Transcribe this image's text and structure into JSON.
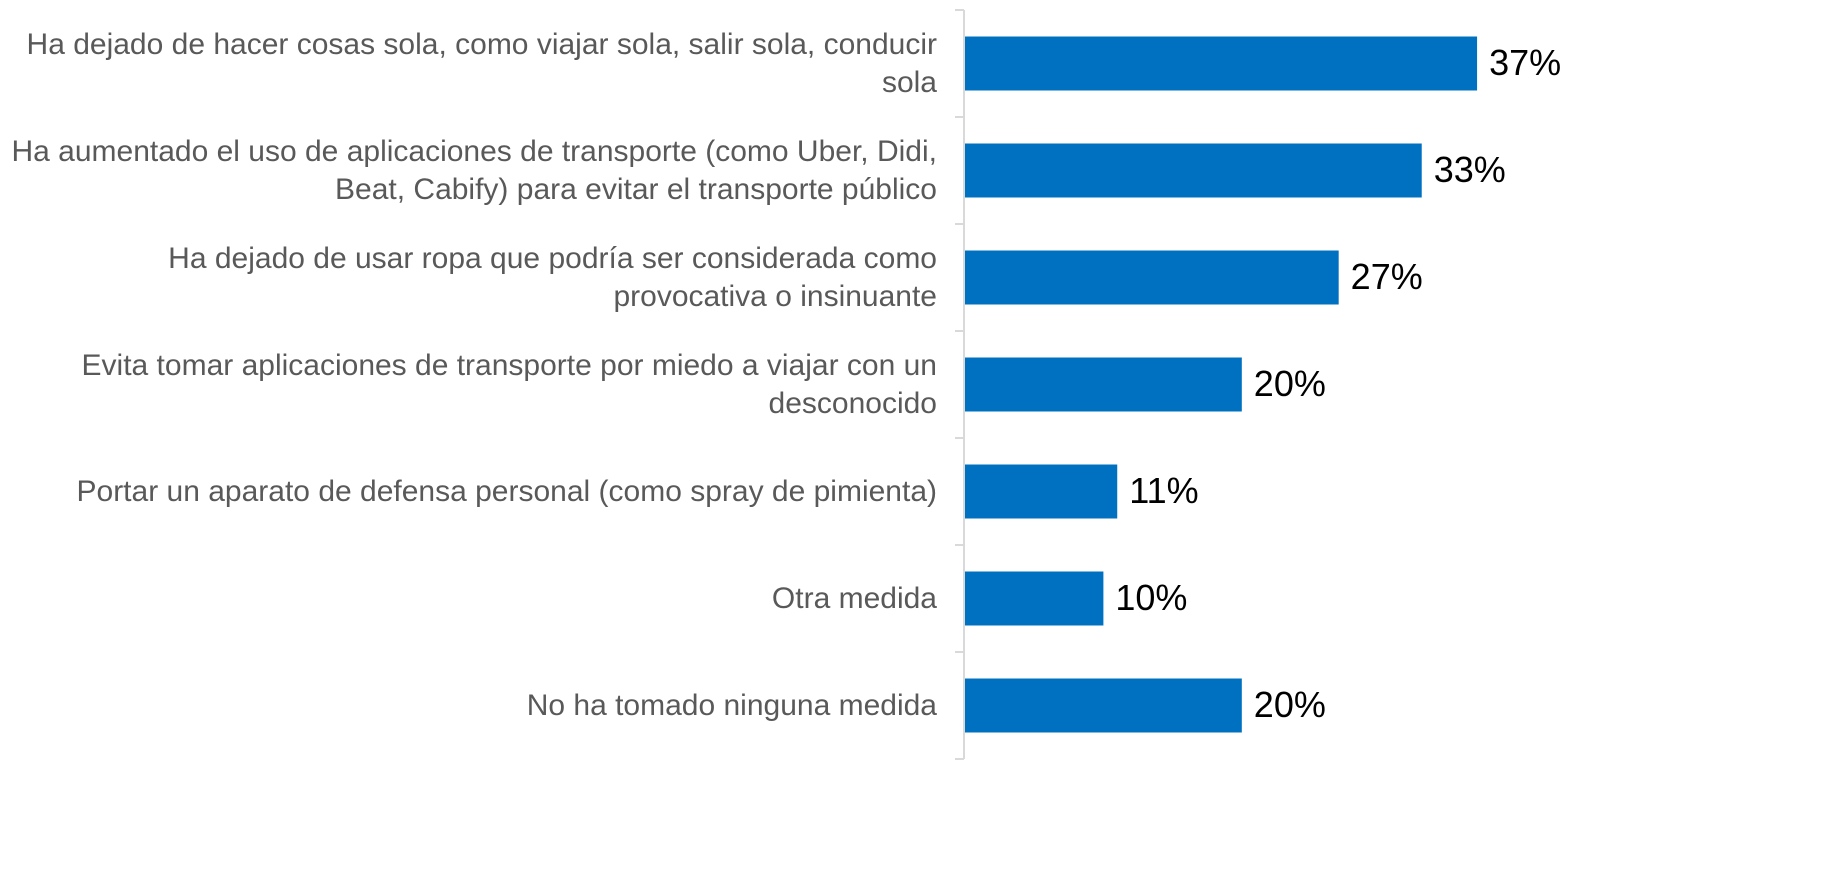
{
  "chart_data": {
    "type": "bar",
    "orientation": "horizontal",
    "categories": [
      "Ha dejado de hacer cosas sola, como viajar sola, salir sola, conducir sola",
      "Ha aumentado el uso de aplicaciones de transporte (como Uber, Didi, Beat, Cabify) para evitar el transporte público",
      "Ha dejado de usar ropa que podría ser considerada como provocativa o insinuante",
      "Evita tomar aplicaciones de transporte por miedo a viajar con un desconocido",
      "Portar un aparato de defensa personal (como spray de pimienta)",
      "Otra medida",
      "No ha tomado ninguna medida"
    ],
    "values": [
      37,
      33,
      27,
      20,
      11,
      10,
      20
    ],
    "value_labels": [
      "37%",
      "33%",
      "27%",
      "20%",
      "11%",
      "10%",
      "20%"
    ],
    "color": "#0070c0"
  }
}
